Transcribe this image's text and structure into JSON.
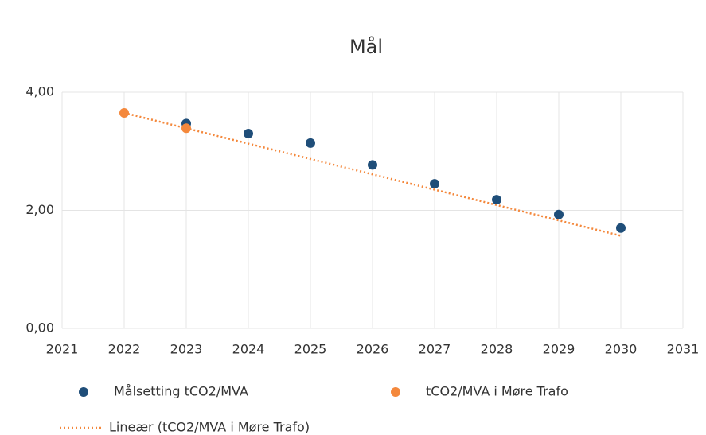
{
  "chart_data": {
    "type": "scatter",
    "title": "Mål",
    "series": [
      {
        "name": "Målsetting tCO2/MVA",
        "color": "#1f4e79",
        "x": [
          2023,
          2024,
          2025,
          2026,
          2027,
          2028,
          2029,
          2030
        ],
        "values": [
          3.47,
          3.3,
          3.14,
          2.77,
          2.45,
          2.18,
          1.93,
          1.7
        ]
      },
      {
        "name": "tCO2/MVA i Møre Trafo",
        "color": "#f4883c",
        "x": [
          2022,
          2023
        ],
        "values": [
          3.65,
          3.39
        ]
      },
      {
        "name": "Lineær (tCO2/MVA i Møre Trafo)",
        "color": "#f4883c",
        "style": "dotted",
        "x": [
          2022,
          2030
        ],
        "values": [
          3.65,
          1.57
        ]
      }
    ],
    "xlim": [
      2021,
      2031
    ],
    "xticks": [
      2021,
      2022,
      2023,
      2024,
      2025,
      2026,
      2027,
      2028,
      2029,
      2030,
      2031
    ],
    "ylim": [
      0,
      4
    ],
    "yticks": [
      {
        "value": 0,
        "label": "0,00"
      },
      {
        "value": 2,
        "label": "2,00"
      },
      {
        "value": 4,
        "label": "4,00"
      }
    ],
    "grid": true,
    "legend": "bottom"
  }
}
